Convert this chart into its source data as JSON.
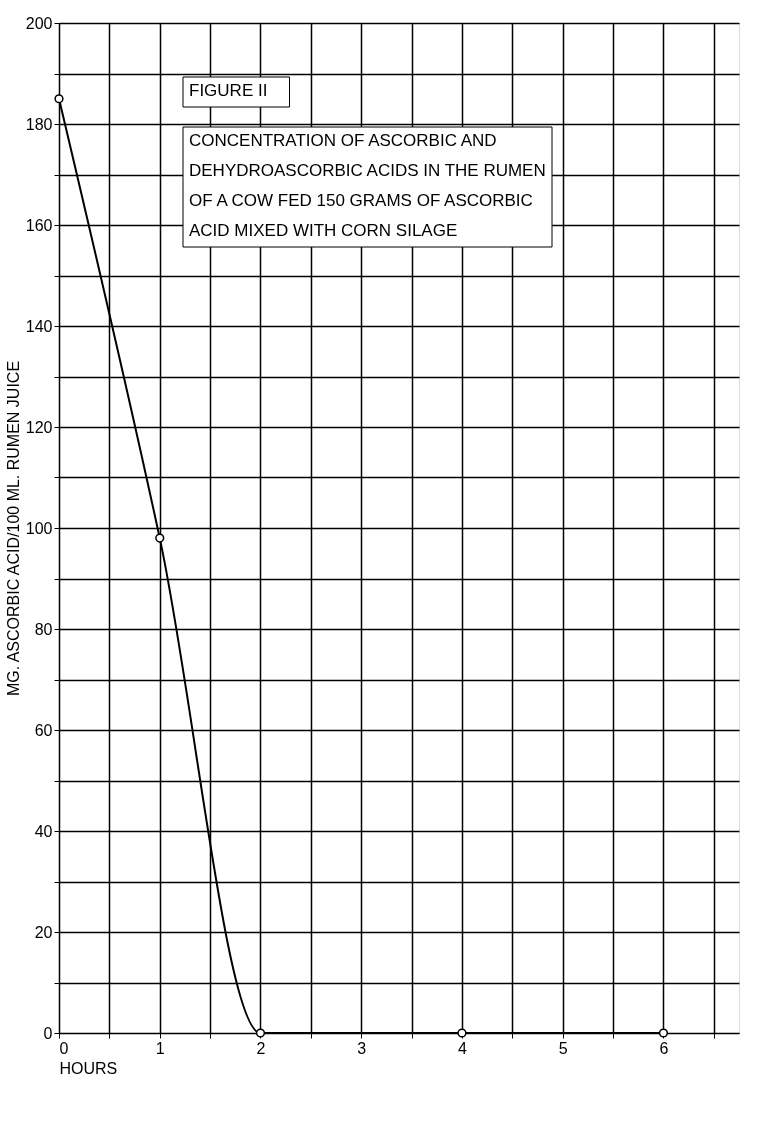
{
  "chart_data": {
    "type": "line",
    "xlabel": "HOURS",
    "ylabel": "MG. ASCORBIC ACID/100 ML. RUMEN JUICE",
    "annotations": [
      "FIGURE II",
      "CONCENTRATION OF ASCORBIC AND DEHYDROASCORBIC ACIDS IN THE RUMEN OF A COW FED 150 GRAMS OF ASCORBIC ACID MIXED WITH CORN SILAGE"
    ],
    "x": [
      0,
      1,
      2,
      4,
      6
    ],
    "series": [
      {
        "color": "#000000",
        "values": [
          185,
          98,
          0,
          0,
          0
        ]
      }
    ],
    "xlim": [
      0,
      6.75
    ],
    "xticks": [
      0,
      {
        "value": 0.5,
        "label": null
      },
      1,
      {
        "value": 1.5,
        "label": null
      },
      2,
      {
        "value": 2.5,
        "label": null
      },
      3,
      {
        "value": 3.5,
        "label": null
      },
      4,
      {
        "value": 4.5,
        "label": null
      },
      5,
      {
        "value": 5.5,
        "label": null
      },
      6,
      {
        "value": 6.5,
        "label": null
      }
    ],
    "ylim": [
      0,
      200
    ],
    "yticks": [
      0,
      {
        "value": 10,
        "label": null
      },
      20,
      {
        "value": 30,
        "label": null
      },
      40,
      {
        "value": 50,
        "label": null
      },
      60,
      {
        "value": 70,
        "label": null
      },
      80,
      {
        "value": 90,
        "label": null
      },
      100,
      {
        "value": 110,
        "label": null
      },
      120,
      {
        "value": 130,
        "label": null
      },
      140,
      {
        "value": 150,
        "label": null
      },
      160,
      {
        "value": 170,
        "label": null
      },
      180,
      {
        "value": 190,
        "label": null
      },
      200
    ],
    "grid": true,
    "marker": "circle",
    "line_style": "solid"
  }
}
